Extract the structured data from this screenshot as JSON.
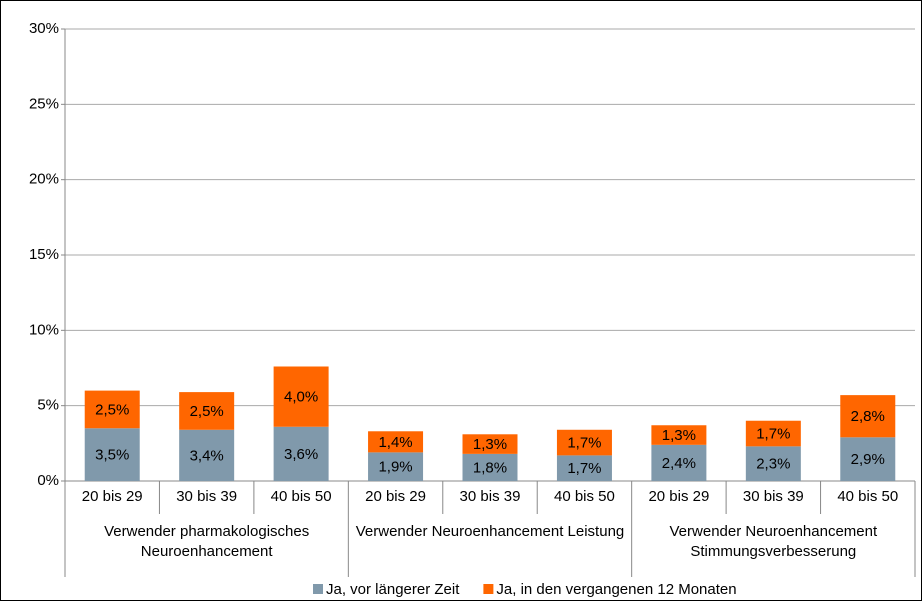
{
  "chart_data": {
    "type": "stacked_bar",
    "groups": [
      {
        "label": "Verwender pharmakologisches Neuroenhancement",
        "categories": [
          "20 bis 29",
          "30 bis 39",
          "40 bis 50"
        ]
      },
      {
        "label": "Verwender Neuroenhancement Leistung",
        "categories": [
          "20 bis 29",
          "30 bis 39",
          "40 bis 50"
        ]
      },
      {
        "label": "Verwender Neuroenhancement Stimmungsverbesserung",
        "categories": [
          "20 bis 29",
          "30 bis 39",
          "40 bis 50"
        ]
      }
    ],
    "series": [
      {
        "name": "Ja, vor längerer Zeit",
        "color": "#8099ab",
        "values": [
          3.5,
          3.4,
          3.6,
          1.9,
          1.8,
          1.7,
          2.4,
          2.3,
          2.9
        ],
        "value_labels": [
          "3,5%",
          "3,4%",
          "3,6%",
          "1,9%",
          "1,8%",
          "1,7%",
          "2,4%",
          "2,3%",
          "2,9%"
        ]
      },
      {
        "name": "Ja, in den vergangenen 12 Monaten",
        "color": "#ff6600",
        "values": [
          2.5,
          2.5,
          4.0,
          1.4,
          1.3,
          1.7,
          1.3,
          1.7,
          2.8
        ],
        "value_labels": [
          "2,5%",
          "2,5%",
          "4,0%",
          "1,4%",
          "1,3%",
          "1,7%",
          "1,3%",
          "1,7%",
          "2,8%"
        ]
      }
    ],
    "ylim": [
      0,
      30
    ],
    "yticks": [
      {
        "value": 0,
        "label": "0%"
      },
      {
        "value": 5,
        "label": "5%"
      },
      {
        "value": 10,
        "label": "10%"
      },
      {
        "value": 15,
        "label": "15%"
      },
      {
        "value": 20,
        "label": "20%"
      },
      {
        "value": 25,
        "label": "25%"
      },
      {
        "value": 30,
        "label": "30%"
      }
    ],
    "grid": true,
    "legend": "bottom"
  }
}
